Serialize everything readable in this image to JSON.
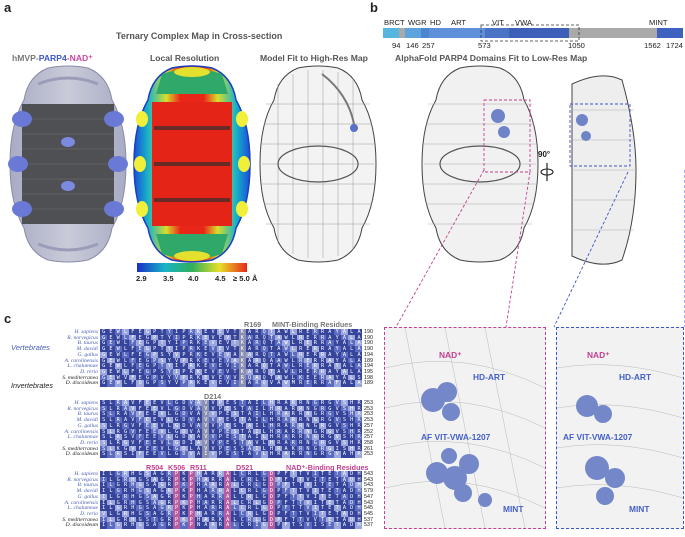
{
  "panels": {
    "a": "a",
    "b": "b",
    "c": "c"
  },
  "panel_a": {
    "title": "Ternary Complex Map in Cross-section",
    "map1_label": {
      "part1": "hMVP-",
      "part2": "PARP4",
      "part3": "-NAD⁺"
    },
    "map2_label": "Local Resolution",
    "map3_label": "Model Fit to High-Res Map",
    "colorbar_ticks": [
      "2.9",
      "3.5",
      "4.0",
      "4.5",
      "≥ 5.0 Å"
    ],
    "colors": {
      "hmvp": "#808080",
      "parp4": "#3d56c9",
      "nad": "#c54aa0"
    }
  },
  "panel_b": {
    "title": "AlphaFold PARP4 Domains Fit to Low-Res Map",
    "domain_labels": [
      "BRCT",
      "WGR",
      "HD",
      "ART",
      "VIT",
      "VWA",
      "MINT"
    ],
    "positions": [
      "94",
      "146",
      "257",
      "573",
      "1050",
      "1562",
      "1724"
    ],
    "rotation": "90°",
    "zoom_labels": {
      "nad": "NAD⁺",
      "hdart": "HD-ART",
      "vitvwa": "AF VIT-VWA-1207",
      "mint": "MINT"
    }
  },
  "panel_c": {
    "block1": {
      "annotation": "R169",
      "header": "MINT-Binding Residues",
      "group_vert": "Vertebrates",
      "group_inv": "Invertebrates",
      "species": [
        "H. sapiens",
        "R. norvegicus",
        "B. taurus",
        "M. davidi",
        "G. gallus",
        "A. carolinensis",
        "L. chalumnae",
        "D. rerio",
        "S. mediterranea",
        "D. discoideum"
      ],
      "numbers": [
        "190",
        "190",
        "190",
        "190",
        "194",
        "189",
        "194",
        "195",
        "198",
        "189"
      ],
      "rows": [
        "GEWLFEGPTYIPRKEVEVTKARQTAWLRERRAYALA",
        "GEWLFEGPTYIPRKEVEVTKARQTAWLRERRAYALA",
        "GEWLFEGPTYIPRKEVEVTKARQTAWLRERRAYALA",
        "GEWLFEGPTYIPRKEVEVTKARQTAWLRERRAYALA",
        "GEWLFEGPSYVPRKEVEVAKARQTAWLRERRAYALA",
        "GEWLFEGPSYVPRKEVEVAKARQAAWLRERRAYALA",
        "GEWLFEGPTYIPRKEVEVIKARQTAWLRERRAYALA",
        "GEWLFEGPSYIPRKEVEVTKARQTAWLRERRAYALA",
        "GEWVFEGPVYVPRKEVEVVRQAQTAWLKEERAYALS",
        "GEWLFQGPSYVPRKEVEVIKARQVAWMRERRAFALA"
      ]
    },
    "block2": {
      "annotation": "D214",
      "species": [
        "H. sapiens",
        "R. norvegicus",
        "B. taurus",
        "M. davidi",
        "G. gallus",
        "A. carolinensis",
        "L. chalumnae",
        "D. rerio",
        "S. mediterranea",
        "D. discoideum"
      ],
      "numbers": [
        "253",
        "253",
        "253",
        "253",
        "257",
        "252",
        "257",
        "258",
        "261",
        "253"
      ],
      "rows": [
        "SLRAVFEEVLGDVAVVPESTAILHRARRNGRGVSHRT",
        "SLRAVFEEVLGDVAVVPESTAILHRARRNGRGVSHRT",
        "SLRAVFEEVLGDVAVVPESTAILHRARRNGRGVSHRT",
        "SLRAVFEEVLGDVAVVPESTAILHRARRNGRGVSHRT",
        "SLRGVFEEVLGDVAVVPESTAILHRARRNGRGVSHRT",
        "SLRGVFEEVLGDVAVVPESTAILHRARRNGRGVSHRT",
        "SLRSVFEEVLGDVAVVPESTAILHRARRNGRGVSHRT",
        "SLRGVFEEVLGDIAVVPESTAVLHRARRNGRGVSHRT",
        "SLKGVFEEVLGDLAVVPESSAILHRAKRNGRGISHRT",
        "SLRSIFEEVLGDVAIVPESTAVLHRARRNGRGVAHRT"
      ]
    },
    "block3": {
      "annotations": [
        "R504",
        "K506",
        "R511",
        "D521"
      ],
      "header": "NAD⁺-Binding Residues",
      "species": [
        "H. sapiens",
        "R. norvegicus",
        "B. taurus",
        "M. davidi",
        "G. gallus",
        "A. carolinensis",
        "L. chalumnae",
        "D. rerio",
        "S. mediterranea",
        "D. discoideum"
      ],
      "numbers": [
        "543",
        "543",
        "543",
        "579",
        "547",
        "543",
        "545",
        "545",
        "537",
        "537"
      ],
      "rows": [
        "ILGRHGSAGRPKPHARRALCRLGDPFTTVITETADH",
        "ILGRHGSAGRPKPHARRALCRLGDPFTTVITETADH",
        "ILGRHGSAGRPKPHARRALCRLGDPFTTVITETADH",
        "ILGRHGSAGRPKPHARRALCRLGDPFTTVITETADH",
        "ILGRHGSAGRPKPHARRALCRLGDPFTTVITETADH",
        "ILGRHGSAGRPKPHARRALCRLGDPFTTVITETADH",
        "ILGRHGSAGRPKPHARRALCRLGDPFTTVITETADH",
        "VLGRHGSAGRPKPHARRALCRLGDPFTTVITETADH",
        "ILGRHGSTGRPKPHARKALCRLGDPFTTVVTETADH",
        "ILGRHGSAGRPKPNARRALCRIGDPFTSVISETADH"
      ]
    }
  }
}
